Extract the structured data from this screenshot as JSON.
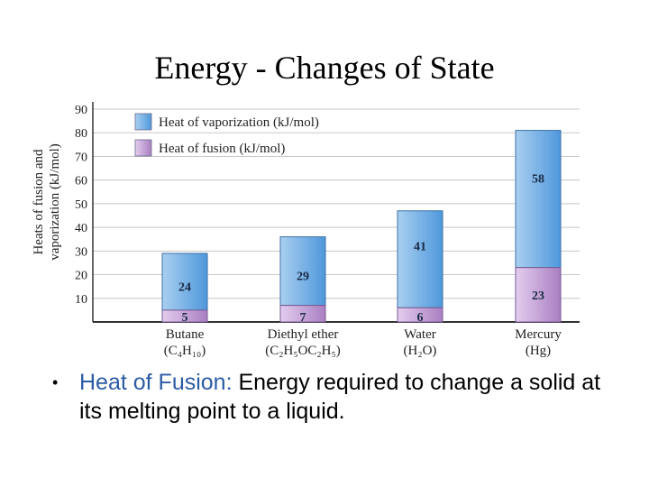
{
  "slide": {
    "title": "Energy - Changes of State",
    "bullet": {
      "marker": "•",
      "term": "Heat of Fusion:",
      "text": "  Energy required to change a solid at its melting point to a liquid."
    }
  },
  "colors": {
    "vaporization": "#5aa2e0",
    "fusion": "#b98fca",
    "axis": "#333333",
    "grid": "#c8c8c8"
  },
  "chart_data": {
    "type": "bar",
    "stacked": true,
    "ylabel": [
      "Heats of fusion and",
      "vaporization (kJ/mol)"
    ],
    "ylim": [
      0,
      90
    ],
    "yticks": [
      10,
      20,
      30,
      40,
      50,
      60,
      70,
      80,
      90
    ],
    "grid": true,
    "legend_position": "top-left",
    "categories": [
      {
        "name": "Butane",
        "formula": "(C₄H₁₀)"
      },
      {
        "name": "Diethyl ether",
        "formula": "(C₂H₅OC₂H₅)"
      },
      {
        "name": "Water",
        "formula": "(H₂O)"
      },
      {
        "name": "Mercury",
        "formula": "(Hg)"
      }
    ],
    "series": [
      {
        "name": "Heat of fusion (kJ/mol)",
        "values": [
          5,
          7,
          6,
          23
        ]
      },
      {
        "name": "Heat of vaporization (kJ/mol)",
        "values": [
          24,
          29,
          41,
          58
        ]
      }
    ]
  }
}
